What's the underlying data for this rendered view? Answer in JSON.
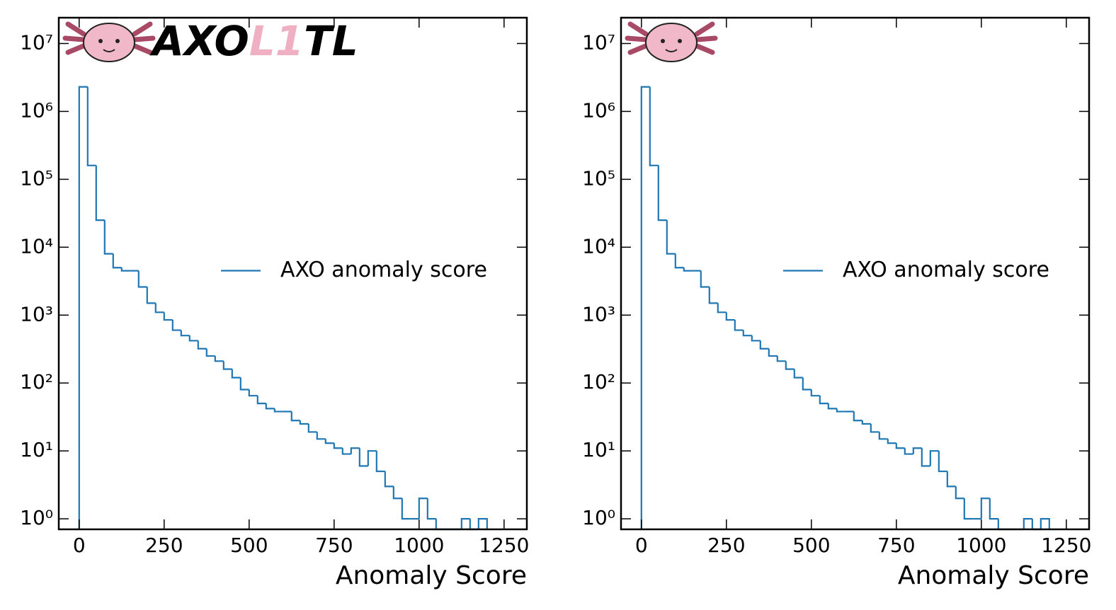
{
  "chart_data": [
    {
      "type": "histogram",
      "logo": [
        "AXO",
        "L1",
        "TL"
      ],
      "xlabel": "Anomaly Score",
      "log_y": true,
      "legend_loc": "center right",
      "series": [
        {
          "name": "AXO anomaly score",
          "color": "#1f77b4",
          "bins": [
            0,
            25,
            50,
            75,
            100,
            125,
            150,
            175,
            200,
            225,
            250,
            275,
            300,
            325,
            350,
            375,
            400,
            425,
            450,
            475,
            500,
            525,
            550,
            575,
            600,
            625,
            650,
            675,
            700,
            725,
            750,
            775,
            800,
            825,
            850,
            875,
            900,
            925,
            950,
            975,
            1000,
            1025,
            1050,
            1075,
            1100,
            1125,
            1150,
            1175,
            1200
          ],
          "values": [
            2300000,
            160000,
            25000,
            8000,
            5000,
            4500,
            4500,
            2600,
            1500,
            1100,
            850,
            600,
            500,
            420,
            320,
            250,
            210,
            160,
            120,
            80,
            65,
            50,
            42,
            38,
            38,
            28,
            25,
            19,
            15,
            13,
            11,
            9,
            11,
            6,
            10,
            5,
            3,
            2,
            1,
            1,
            2,
            1,
            0,
            0,
            0,
            1,
            0,
            1
          ]
        }
      ],
      "xlim": [
        -60,
        1317
      ],
      "ylim": [
        0.7,
        24000000
      ],
      "xticks": [
        0,
        250,
        500,
        750,
        1000,
        1250
      ],
      "yticks": [
        {
          "value": 1,
          "label": "10⁰"
        },
        {
          "value": 10,
          "label": "10¹"
        },
        {
          "value": 100,
          "label": "10²"
        },
        {
          "value": 1000,
          "label": "10³"
        },
        {
          "value": 10000,
          "label": "10⁴"
        },
        {
          "value": 100000,
          "label": "10⁵"
        },
        {
          "value": 1000000,
          "label": "10⁶"
        },
        {
          "value": 10000000,
          "label": "10⁷"
        }
      ]
    },
    {
      "type": "histogram",
      "xlabel": "Anomaly Score",
      "log_y": true,
      "legend_loc": "center right",
      "series": [
        {
          "name": "AXO anomaly score",
          "color": "#1f77b4",
          "bins": [
            0,
            25,
            50,
            75,
            100,
            125,
            150,
            175,
            200,
            225,
            250,
            275,
            300,
            325,
            350,
            375,
            400,
            425,
            450,
            475,
            500,
            525,
            550,
            575,
            600,
            625,
            650,
            675,
            700,
            725,
            750,
            775,
            800,
            825,
            850,
            875,
            900,
            925,
            950,
            975,
            1000,
            1025,
            1050,
            1075,
            1100,
            1125,
            1150,
            1175,
            1200
          ],
          "values": [
            2300000,
            160000,
            25000,
            8000,
            5000,
            4500,
            4500,
            2600,
            1500,
            1100,
            850,
            600,
            500,
            420,
            320,
            250,
            210,
            160,
            120,
            80,
            65,
            50,
            42,
            38,
            38,
            28,
            25,
            19,
            15,
            13,
            11,
            9,
            11,
            6,
            10,
            5,
            3,
            2,
            1,
            1,
            2,
            1,
            0,
            0,
            0,
            1,
            0,
            1
          ]
        }
      ],
      "xlim": [
        -60,
        1317
      ],
      "ylim": [
        0.7,
        24000000
      ],
      "xticks": [
        0,
        250,
        500,
        750,
        1000,
        1250
      ],
      "yticks": [
        {
          "value": 1,
          "label": "10⁰"
        },
        {
          "value": 10,
          "label": "10¹"
        },
        {
          "value": 100,
          "label": "10²"
        },
        {
          "value": 1000,
          "label": "10³"
        },
        {
          "value": 10000,
          "label": "10⁴"
        },
        {
          "value": 100000,
          "label": "10⁵"
        },
        {
          "value": 1000000,
          "label": "10⁶"
        },
        {
          "value": 10000000,
          "label": "10⁷"
        }
      ]
    }
  ]
}
